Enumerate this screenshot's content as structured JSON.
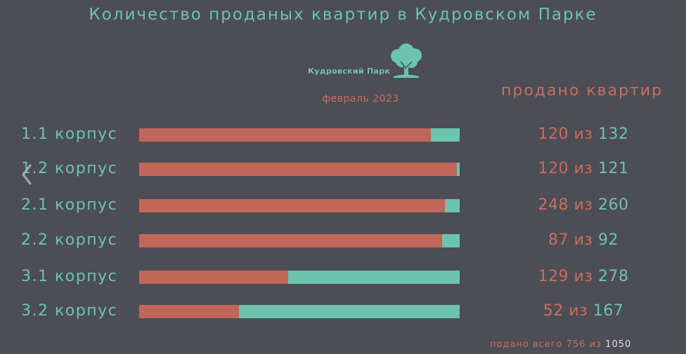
{
  "title": "Количество проданых квартир в Кудровском Парке",
  "logo": {
    "text": "Кудровский Парк",
    "icon": "tree-icon"
  },
  "subtitle": "февраль 2023",
  "column_header": "продано квартир",
  "separator": "из",
  "colors": {
    "sold": "#c0675a",
    "remaining": "#6cc4ae",
    "background": "#4c4d55"
  },
  "chart_data": {
    "type": "bar",
    "orientation": "horizontal",
    "stacked": true,
    "categories": [
      "1.1 корпус",
      "1.2 корпус",
      "2.1 корпус",
      "2.2 корпус",
      "3.1 корпус",
      "3.2 корпус"
    ],
    "sold": [
      120,
      120,
      248,
      87,
      129,
      52
    ],
    "total": [
      132,
      121,
      260,
      92,
      278,
      167
    ],
    "title": "Количество проданых квартир в Кудровском Парке",
    "subtitle": "февраль 2023",
    "grid": false
  },
  "footer": {
    "text": "подано всего 756 из",
    "total": "1050"
  },
  "nav": {
    "icon": "chevron-left-icon"
  }
}
